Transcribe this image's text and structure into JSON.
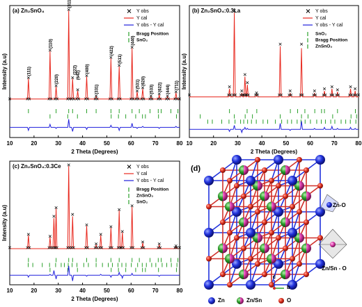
{
  "chart_data": [
    {
      "type": "rietveld",
      "title": "(a) Zn₂SnO₄",
      "x_label": "2 Theta (Degrees)",
      "y_label": "Intensity (a.u)",
      "xlim": [
        10,
        80
      ],
      "xticks": [
        10,
        20,
        30,
        40,
        50,
        60,
        70,
        80
      ],
      "ylim": [
        -30,
        100
      ],
      "legend": "upper right",
      "x": [
        10,
        17.3,
        17.7,
        18.1,
        26.2,
        26.6,
        27.0,
        28.7,
        29.1,
        29.5,
        33.9,
        34.3,
        34.7,
        35.5,
        35.9,
        36.3,
        37.6,
        38.0,
        38.4,
        41.3,
        41.7,
        42.1,
        45.2,
        45.6,
        46.0,
        51.3,
        51.7,
        52.1,
        54.7,
        55.1,
        55.5,
        60.0,
        60.4,
        60.8,
        62.1,
        62.5,
        62.9,
        64.4,
        64.8,
        65.2,
        67.8,
        68.2,
        68.6,
        71.2,
        71.6,
        72.0,
        74.6,
        75.0,
        75.4,
        78.1,
        78.5,
        78.9,
        80
      ],
      "series": [
        {
          "name": "Y obs",
          "marker": "x",
          "color": "#000000",
          "values": [
            8,
            8,
            29,
            8,
            8,
            56,
            8,
            8,
            21,
            8,
            8,
            96,
            8,
            8,
            29,
            8,
            8,
            17,
            8,
            8,
            31,
            8,
            8,
            11,
            8,
            8,
            49,
            8,
            8,
            41,
            8,
            8,
            59,
            8,
            8,
            16,
            8,
            8,
            19,
            8,
            8,
            11,
            8,
            8,
            13,
            8,
            8,
            11,
            8,
            8,
            15,
            8,
            8
          ]
        },
        {
          "name": "Y cal",
          "marker": "line",
          "color": "#e8281e",
          "values": [
            8,
            8,
            28,
            8,
            8,
            55,
            8,
            8,
            20,
            8,
            8,
            95,
            8,
            8,
            28,
            8,
            8,
            16,
            8,
            8,
            30,
            8,
            8,
            10,
            8,
            8,
            48,
            8,
            8,
            40,
            8,
            8,
            58,
            8,
            8,
            15,
            8,
            8,
            18,
            8,
            8,
            10,
            8,
            8,
            12,
            8,
            8,
            10,
            8,
            8,
            14,
            8,
            8
          ]
        },
        {
          "name": "Y obs - Y cal",
          "marker": "line",
          "color": "#1f1fdc",
          "values": [
            -20,
            -20,
            -23,
            -20,
            -20,
            -17,
            -20,
            -20,
            -21,
            -20,
            -20,
            -12,
            -20,
            -20,
            -24,
            -20,
            -20,
            -20,
            -20,
            -20,
            -22,
            -20,
            -20,
            -20,
            -20,
            -20,
            -18,
            -20,
            -20,
            -23,
            -20,
            -20,
            -16,
            -20,
            -20,
            -21,
            -20,
            -20,
            -19,
            -20,
            -20,
            -20,
            -20,
            -20,
            -21,
            -20,
            -20,
            -20,
            -20,
            -20,
            -19,
            -20,
            -20
          ]
        }
      ],
      "bragg": [
        {
          "name": "Bragg Position",
          "color": "#2aa02a",
          "x": [
            17.7,
            29.1,
            34.3,
            35.9,
            41.7,
            45.6,
            51.7,
            55.1,
            60.4,
            63.4,
            67.8,
            71.2,
            72.4,
            76.4,
            79.3
          ]
        },
        {
          "name": "SnO₂",
          "color": "#2aa02a",
          "x": [
            26.6,
            33.9,
            37.9,
            51.8,
            54.8,
            57.8,
            61.9,
            64.7,
            65.9,
            71.3,
            78.7
          ]
        }
      ],
      "annotations": [
        {
          "text": "(111)",
          "x": 17.7,
          "y": 30
        },
        {
          "text": "(110)",
          "x": 26.6,
          "y": 57
        },
        {
          "text": "(220)",
          "x": 29.1,
          "y": 22
        },
        {
          "text": "(311)",
          "x": 34.3,
          "y": 97
        },
        {
          "text": "(222)",
          "x": 36.6,
          "y": 31
        },
        {
          "text": "(400)",
          "x": 41.7,
          "y": 32
        },
        {
          "text": "(331)",
          "x": 45.6,
          "y": 12
        },
        {
          "text": "(422)",
          "x": 51.7,
          "y": 50
        },
        {
          "text": "(511)",
          "x": 55.1,
          "y": 42
        },
        {
          "text": "(440)",
          "x": 60.4,
          "y": 60
        },
        {
          "text": "(531)",
          "x": 62.5,
          "y": 17
        },
        {
          "text": "(620)",
          "x": 64.8,
          "y": 20
        },
        {
          "text": "(533)",
          "x": 68.2,
          "y": 12
        },
        {
          "text": "(622)",
          "x": 71.6,
          "y": 14
        },
        {
          "text": "(444)",
          "x": 75.0,
          "y": 12
        },
        {
          "text": "(711)",
          "x": 78.5,
          "y": 16
        },
        {
          "text": "(642)",
          "x": 38.0,
          "y": 26
        }
      ]
    },
    {
      "type": "rietveld",
      "title": "(b) Zn₂SnO₄:0.3La",
      "x_label": "2 Theta (Degrees)",
      "y_label": "Intensity (a.u)",
      "xlim": [
        10,
        80
      ],
      "xticks": [
        10,
        20,
        30,
        40,
        50,
        60,
        70,
        80
      ],
      "ylim": [
        -30,
        100
      ],
      "legend": "upper right",
      "x": [
        10,
        26.2,
        26.6,
        27.0,
        28.2,
        28.6,
        29.0,
        31.3,
        31.7,
        32.1,
        32.6,
        33.0,
        33.4,
        33.6,
        34.0,
        34.4,
        37.4,
        37.8,
        38.2,
        47.2,
        47.6,
        48.0,
        51.3,
        51.7,
        52.1,
        56.0,
        56.4,
        56.8,
        61.4,
        61.8,
        62.2,
        65.5,
        65.9,
        66.3,
        68.6,
        69.0,
        69.4,
        70.9,
        71.3,
        71.7,
        76.3,
        76.7,
        77.1,
        78.2,
        78.6,
        79.0,
        80
      ],
      "series": [
        {
          "name": "Y obs",
          "marker": "x",
          "color": "#000000",
          "values": [
            12,
            12,
            20,
            12,
            12,
            95,
            12,
            12,
            16,
            12,
            12,
            32,
            12,
            12,
            24,
            12,
            12,
            14,
            12,
            12,
            62,
            12,
            12,
            16,
            12,
            12,
            62,
            12,
            12,
            16,
            12,
            12,
            18,
            12,
            12,
            20,
            12,
            12,
            17,
            12,
            12,
            20,
            12,
            12,
            18,
            12,
            12
          ]
        },
        {
          "name": "Y cal",
          "marker": "line",
          "color": "#e8281e",
          "values": [
            10,
            10,
            18,
            10,
            10,
            93,
            10,
            10,
            14,
            10,
            10,
            30,
            10,
            10,
            22,
            10,
            10,
            12,
            10,
            10,
            60,
            10,
            10,
            14,
            10,
            10,
            58,
            10,
            10,
            14,
            10,
            10,
            16,
            10,
            10,
            18,
            10,
            10,
            15,
            10,
            10,
            18,
            10,
            10,
            16,
            10,
            10
          ]
        },
        {
          "name": "Y obs - Y cal",
          "marker": "line",
          "color": "#1f1fdc",
          "values": [
            -22,
            -22,
            -24,
            -22,
            -22,
            -18,
            -22,
            -22,
            -25,
            -22,
            -22,
            -20,
            -22,
            -22,
            -21,
            -22,
            -22,
            -22,
            -22,
            -22,
            -16,
            -22,
            -22,
            -23,
            -22,
            -22,
            -14,
            -22,
            -22,
            -21,
            -22,
            -22,
            -20,
            -22,
            -22,
            -19,
            -22,
            -22,
            -21,
            -22,
            -22,
            -20,
            -22,
            -22,
            -21,
            -22,
            -22
          ]
        }
      ],
      "bragg": [
        {
          "name": "SnO₂",
          "color": "#2aa02a",
          "x": [
            26.6,
            33.9,
            37.9,
            51.8,
            54.8,
            57.8,
            61.9,
            64.7,
            65.9,
            71.3,
            78.7
          ]
        },
        {
          "name": "Bragg Position",
          "color": "#2aa02a",
          "x": [
            14.5,
            28.6,
            33.1,
            36.1,
            47.6,
            56.4,
            59.1,
            69.3,
            76.9,
            79.2
          ]
        },
        {
          "name": "ZnSnO₃",
          "color": "#2aa02a",
          "x": [
            17.6,
            19.5,
            23.4,
            26.4,
            28.9,
            31.2,
            32.5,
            34.1,
            35.7,
            37.7,
            40.5,
            42.4,
            45.6,
            48.2,
            50.6,
            52.3,
            54.6,
            56.2,
            57.9,
            60.1,
            62.7,
            64.6,
            66.3,
            68.5,
            70.2,
            72.8,
            74.7,
            76.6,
            78.9
          ]
        }
      ]
    },
    {
      "type": "rietveld",
      "title": "(c) Zn₂SnO₄:0.3Ce",
      "x_label": "2 Theta (Degrees)",
      "y_label": "Intensity (a.u)",
      "xlim": [
        10,
        80
      ],
      "xticks": [
        10,
        20,
        30,
        40,
        50,
        60,
        70,
        80
      ],
      "ylim": [
        -30,
        100
      ],
      "legend": "upper right",
      "x": [
        10,
        17.3,
        17.7,
        18.1,
        26.2,
        26.6,
        27.0,
        27.8,
        28.2,
        28.6,
        28.75,
        29.1,
        29.45,
        33.9,
        34.3,
        34.7,
        35.5,
        35.9,
        36.3,
        41.3,
        41.7,
        42.1,
        45.2,
        45.6,
        46.0,
        47.1,
        47.5,
        47.9,
        51.3,
        51.7,
        52.1,
        54.7,
        55.1,
        55.5,
        56.0,
        56.4,
        56.8,
        60.0,
        60.4,
        60.8,
        64.4,
        64.8,
        65.2,
        71.2,
        71.6,
        72.0,
        78.1,
        78.5,
        78.9,
        80
      ],
      "series": [
        {
          "name": "Y obs",
          "marker": "x",
          "color": "#000000",
          "values": [
            9,
            9,
            23,
            9,
            9,
            21,
            9,
            9,
            42,
            9,
            9,
            51,
            9,
            9,
            96,
            9,
            9,
            44,
            9,
            9,
            33,
            9,
            9,
            13,
            9,
            9,
            23,
            9,
            9,
            31,
            9,
            9,
            49,
            9,
            9,
            26,
            9,
            9,
            53,
            9,
            9,
            15,
            9,
            9,
            13,
            9,
            9,
            11,
            9,
            9
          ]
        },
        {
          "name": "Y cal",
          "marker": "line",
          "color": "#e8281e",
          "values": [
            8,
            8,
            22,
            8,
            8,
            20,
            8,
            8,
            40,
            8,
            8,
            50,
            8,
            8,
            95,
            8,
            8,
            42,
            8,
            8,
            32,
            8,
            8,
            12,
            8,
            8,
            22,
            8,
            8,
            30,
            8,
            8,
            48,
            8,
            8,
            25,
            8,
            8,
            52,
            8,
            8,
            14,
            8,
            8,
            12,
            8,
            8,
            10,
            8,
            8
          ]
        },
        {
          "name": "Y obs - Y cal",
          "marker": "line",
          "color": "#1f1fdc",
          "values": [
            -20,
            -20,
            -22,
            -20,
            -20,
            -19,
            -20,
            -20,
            -15,
            -20,
            -20,
            -24,
            -20,
            -20,
            -10,
            -20,
            -20,
            -26,
            -20,
            -20,
            -21,
            -20,
            -20,
            -20,
            -20,
            -20,
            -19,
            -20,
            -20,
            -22,
            -20,
            -20,
            -17,
            -20,
            -20,
            -23,
            -20,
            -20,
            -18,
            -20,
            -20,
            -20,
            -20,
            -20,
            -21,
            -20,
            -20,
            -20,
            -20,
            -20
          ]
        }
      ],
      "bragg": [
        {
          "name": "Bragg Position",
          "color": "#2aa02a",
          "x": [
            17.7,
            29.1,
            34.3,
            35.9,
            41.7,
            45.6,
            51.7,
            55.1,
            60.4,
            63.4,
            67.8,
            71.2,
            72.4,
            76.4,
            79.3
          ]
        },
        {
          "name": "ZnSnO₃",
          "color": "#2aa02a",
          "x": [
            17.6,
            19.5,
            23.4,
            26.4,
            28.9,
            31.2,
            32.5,
            34.1,
            35.7,
            37.7,
            40.5,
            42.4,
            45.6,
            48.2,
            50.6,
            52.3,
            54.6,
            56.2,
            57.9,
            60.1,
            62.7,
            64.6,
            66.3,
            68.5,
            70.2,
            72.8,
            74.7,
            76.6,
            78.9
          ]
        },
        {
          "name": "SnO₂",
          "color": "#2aa02a",
          "x": [
            26.6,
            33.9,
            37.9,
            51.8,
            54.8,
            57.8,
            61.9,
            64.7,
            65.9,
            71.3,
            78.7
          ]
        }
      ]
    }
  ],
  "structure": {
    "label": "(d)",
    "polyhedra": [
      "Zn-O",
      "Zn/Sn - O"
    ],
    "axes": [
      "c",
      "b"
    ],
    "legend": [
      "Zn",
      "Zn/Sn",
      "O"
    ]
  }
}
